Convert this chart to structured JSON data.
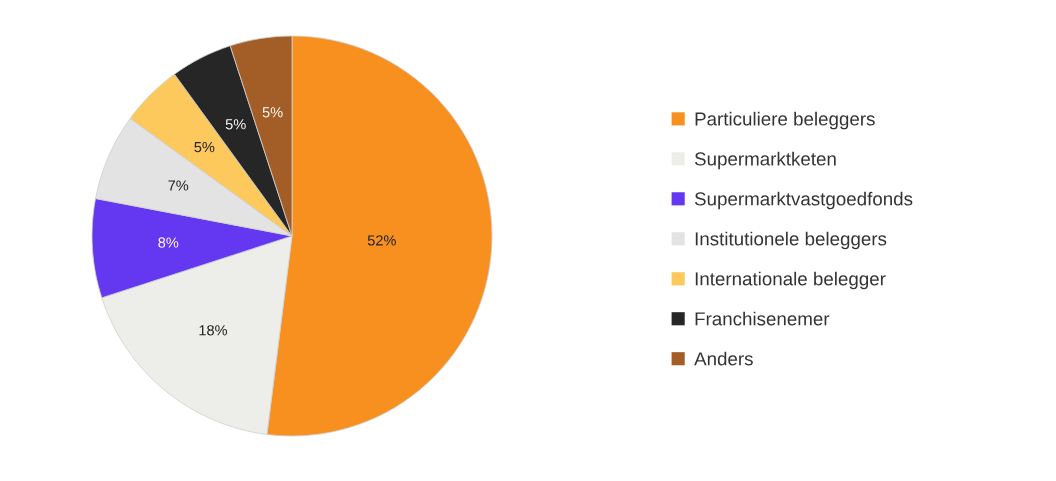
{
  "chart_data": {
    "type": "pie",
    "categories": [
      "Particuliere beleggers",
      "Supermarktketen",
      "Supermarktvastgoedfonds",
      "Institutionele beleggers",
      "Internationale belegger",
      "Franchisenemer",
      "Anders"
    ],
    "values": [
      52,
      18,
      8,
      7,
      5,
      5,
      5
    ],
    "colors": [
      "#f7901e",
      "#ededea",
      "#6437f0",
      "#e3e3e3",
      "#fdc95c",
      "#262626",
      "#a35d26"
    ],
    "value_labels": [
      "52%",
      "18%",
      "8%",
      "7%",
      "5%",
      "5%",
      "5%"
    ],
    "legend": "right"
  }
}
